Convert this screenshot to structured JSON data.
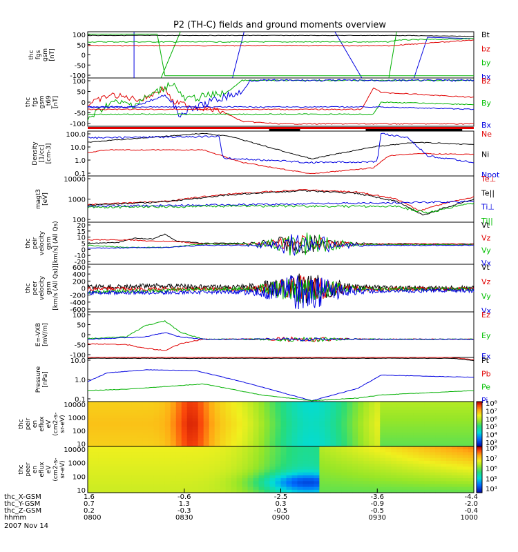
{
  "chart_data": {
    "type": "line",
    "title": "P2 (TH-C) fields and ground moments overview",
    "panels": [
      {
        "id": "fgs",
        "ylabel": [
          "thc",
          "fgs",
          "gsm",
          "[nT]"
        ],
        "yticks": [
          "100",
          "50",
          "0",
          "-50",
          "-100"
        ],
        "legend": [
          {
            "text": "Bt",
            "color": "#000000"
          },
          {
            "text": "bz",
            "color": "#e00000"
          },
          {
            "text": "by",
            "color": "#00c000"
          },
          {
            "text": "bx",
            "color": "#0000e0"
          }
        ]
      },
      {
        "id": "fgs_smooth",
        "ylabel": [
          "thc",
          "fgs",
          "gsm",
          "_t69",
          "[nT]"
        ],
        "yticks": [
          "100",
          "50",
          "0",
          "-50",
          "-100"
        ],
        "legend": [
          {
            "text": "Bz",
            "color": "#e00000"
          },
          {
            "text": "By",
            "color": "#00c000"
          },
          {
            "text": "Bx",
            "color": "#0000e0"
          }
        ]
      },
      {
        "id": "density",
        "ylabel": [
          "Density",
          "[1/cc]",
          "[cm-3]"
        ],
        "yticks": [
          "100.0",
          "10.0",
          "1.0",
          "0.1"
        ],
        "legend": [
          {
            "text": "Ne",
            "color": "#e00000"
          },
          {
            "text": "Ni",
            "color": "#000000"
          },
          {
            "text": "Npot",
            "color": "#0000e0"
          }
        ]
      },
      {
        "id": "temperature",
        "ylabel": [
          "magt3",
          "[eV]"
        ],
        "yticks": [
          "10000",
          "1000",
          "100"
        ],
        "legend": [
          {
            "text": "Te⊥",
            "color": "#e00000"
          },
          {
            "text": "Te||",
            "color": "#000000"
          },
          {
            "text": "Ti⊥",
            "color": "#0000e0"
          },
          {
            "text": "Ti||",
            "color": "#00c000"
          }
        ]
      },
      {
        "id": "peir_velocity",
        "ylabel": [
          "thc",
          "peir",
          "velocity",
          "gsm",
          "[km/s] (All Qs)"
        ],
        "yticks": [
          "20",
          "15",
          "10",
          "5",
          "0",
          "-10",
          "-20"
        ],
        "legend": [
          {
            "text": "Vt",
            "color": "#000000"
          },
          {
            "text": "Vz",
            "color": "#e00000"
          },
          {
            "text": "Vy",
            "color": "#00c000"
          },
          {
            "text": "Vx",
            "color": "#0000e0"
          }
        ]
      },
      {
        "id": "peer_velocity",
        "ylabel": [
          "thc",
          "peer",
          "velocity",
          "gsm",
          "[km/s (All Qs)]"
        ],
        "yticks": [
          "600",
          "400",
          "200",
          "0",
          "-200",
          "-400",
          "-600"
        ],
        "legend": [
          {
            "text": "Vt",
            "color": "#000000"
          },
          {
            "text": "Vz",
            "color": "#e00000"
          },
          {
            "text": "Vy",
            "color": "#00c000"
          },
          {
            "text": "Vx",
            "color": "#0000e0"
          }
        ]
      },
      {
        "id": "efield",
        "ylabel": [
          "E=-VXB",
          "[mV/m]"
        ],
        "yticks": [
          "100",
          "50",
          "0",
          "-50",
          "-100"
        ],
        "legend": [
          {
            "text": "Ez",
            "color": "#e00000"
          },
          {
            "text": "Ey",
            "color": "#00c000"
          },
          {
            "text": "Ex",
            "color": "#0000e0"
          }
        ]
      },
      {
        "id": "pressure",
        "ylabel": [
          "Pressure",
          "[nPa]"
        ],
        "yticks": [
          "10.0",
          "1.0",
          "0.1"
        ],
        "legend": [
          {
            "text": "Pt",
            "color": "#000000"
          },
          {
            "text": "Pb",
            "color": "#e00000"
          },
          {
            "text": "Pe",
            "color": "#00c000"
          },
          {
            "text": "Pi",
            "color": "#0000e0"
          }
        ]
      },
      {
        "id": "peir_spectrogram",
        "ylabel": [
          "thc",
          "peir",
          "en",
          "eflux",
          "eV",
          "(cm2-s-",
          "sr-eV)"
        ],
        "yticks": [
          "10000",
          "1000",
          "100",
          "10"
        ],
        "colorbar": [
          "10⁸",
          "10⁷",
          "10⁶",
          "10⁵",
          "10⁴",
          "10³"
        ]
      },
      {
        "id": "peer_spectrogram",
        "ylabel": [
          "thc",
          "peer",
          "en",
          "eflux",
          "eV",
          "(cm2-s-",
          "sr-eV)"
        ],
        "yticks": [
          "10000",
          "1000",
          "100",
          "10"
        ],
        "colorbar": [
          "10⁸",
          "10⁷",
          "10⁶",
          "10⁵",
          "10⁴"
        ]
      }
    ],
    "x_axis": {
      "rows": [
        {
          "label": "thc_X-GSM",
          "values": [
            "1.6",
            "-0.6",
            "-2.5",
            "-3.6",
            "-4.4"
          ]
        },
        {
          "label": "thc_Y-GSM",
          "values": [
            "0.7",
            "1.3",
            "0.3",
            "-0.9",
            "-2.0"
          ]
        },
        {
          "label": "thc_Z-GSM",
          "values": [
            "0.2",
            "-0.3",
            "-0.5",
            "-0.5",
            "-0.4"
          ]
        },
        {
          "label": "hhmm",
          "values": [
            "0800",
            "0830",
            "0900",
            "0930",
            "1000"
          ]
        }
      ],
      "date": "2007 Nov 14",
      "time_range_min": [
        0,
        120
      ],
      "tick_minutes": [
        0,
        30,
        60,
        90,
        120
      ]
    }
  }
}
